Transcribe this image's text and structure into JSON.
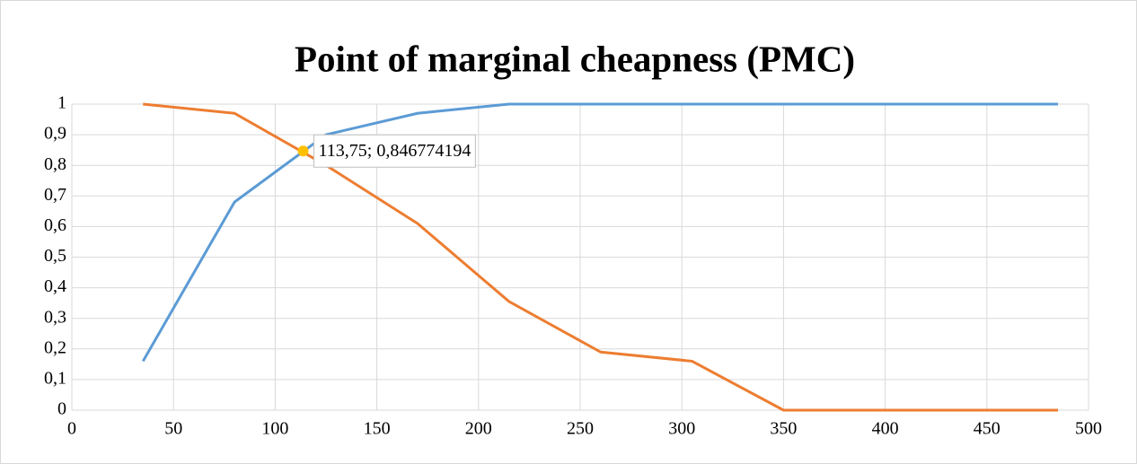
{
  "chart_data": {
    "type": "line",
    "title": "Point of marginal cheapness (PMC)",
    "x": [
      35,
      80,
      125,
      170,
      215,
      260,
      305,
      350,
      395,
      440,
      485
    ],
    "series": [
      {
        "color": "#5b9bd5",
        "values": [
          0.16,
          0.68,
          0.9,
          0.97,
          1,
          1,
          1,
          1,
          1,
          1,
          1
        ]
      },
      {
        "color": "#ed7d31",
        "values": [
          1,
          0.97,
          0.8,
          0.61,
          0.355,
          0.19,
          0.16,
          0,
          0,
          0,
          0
        ]
      }
    ],
    "xlim": [
      0,
      500
    ],
    "xticks": [
      0,
      50,
      100,
      150,
      200,
      250,
      300,
      350,
      400,
      450,
      500
    ],
    "ylim": [
      0,
      1
    ],
    "yticks": [
      0,
      {
        "value": 0.1,
        "label": "0,1"
      },
      {
        "value": 0.2,
        "label": "0,2"
      },
      {
        "value": 0.3,
        "label": "0,3"
      },
      {
        "value": 0.4,
        "label": "0,4"
      },
      {
        "value": 0.5,
        "label": "0,5"
      },
      {
        "value": 0.6,
        "label": "0,6"
      },
      {
        "value": 0.7,
        "label": "0,7"
      },
      {
        "value": 0.8,
        "label": "0,8"
      },
      {
        "value": 0.9,
        "label": "0,9"
      },
      1
    ],
    "grid": true,
    "annotation": {
      "x": 113.75,
      "y": 0.846774194,
      "label": "113,75; 0,846774194",
      "color": "#ffc000"
    }
  }
}
